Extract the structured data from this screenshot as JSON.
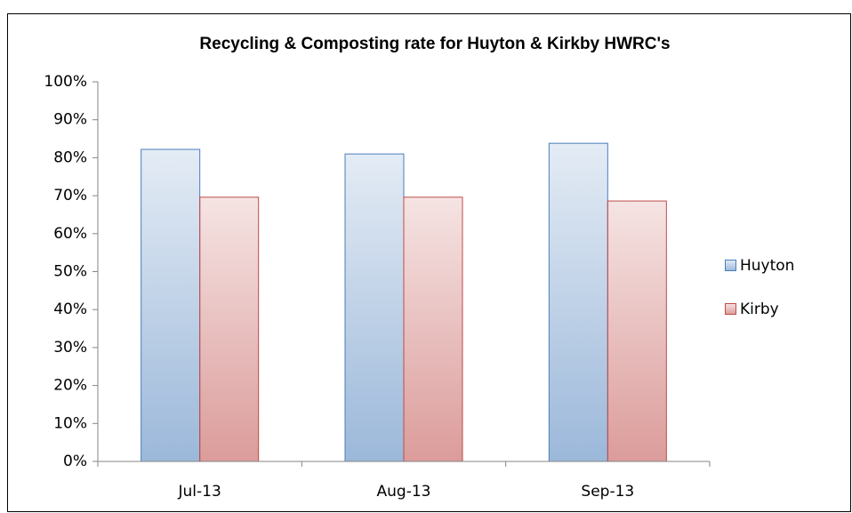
{
  "chart_data": {
    "type": "bar",
    "title": "Recycling & Composting rate for Huyton & Kirkby HWRC's",
    "categories": [
      "Jul-13",
      "Aug-13",
      "Sep-13"
    ],
    "series": [
      {
        "name": "Huyton",
        "color": "#4a7ebb",
        "values": [
          82.2,
          81.0,
          83.8
        ]
      },
      {
        "name": "Kirby",
        "color": "#be4b48",
        "values": [
          69.6,
          69.6,
          68.6
        ]
      }
    ],
    "ylim": [
      0,
      100
    ],
    "yticks": [
      {
        "value": 0,
        "label": "0%"
      },
      {
        "value": 10,
        "label": "10%"
      },
      {
        "value": 20,
        "label": "20%"
      },
      {
        "value": 30,
        "label": "30%"
      },
      {
        "value": 40,
        "label": "40%"
      },
      {
        "value": 50,
        "label": "50%"
      },
      {
        "value": 60,
        "label": "60%"
      },
      {
        "value": 70,
        "label": "70%"
      },
      {
        "value": 80,
        "label": "80%"
      },
      {
        "value": 90,
        "label": "90%"
      },
      {
        "value": 100,
        "label": "100%"
      }
    ],
    "grid": false,
    "legend": "right"
  }
}
